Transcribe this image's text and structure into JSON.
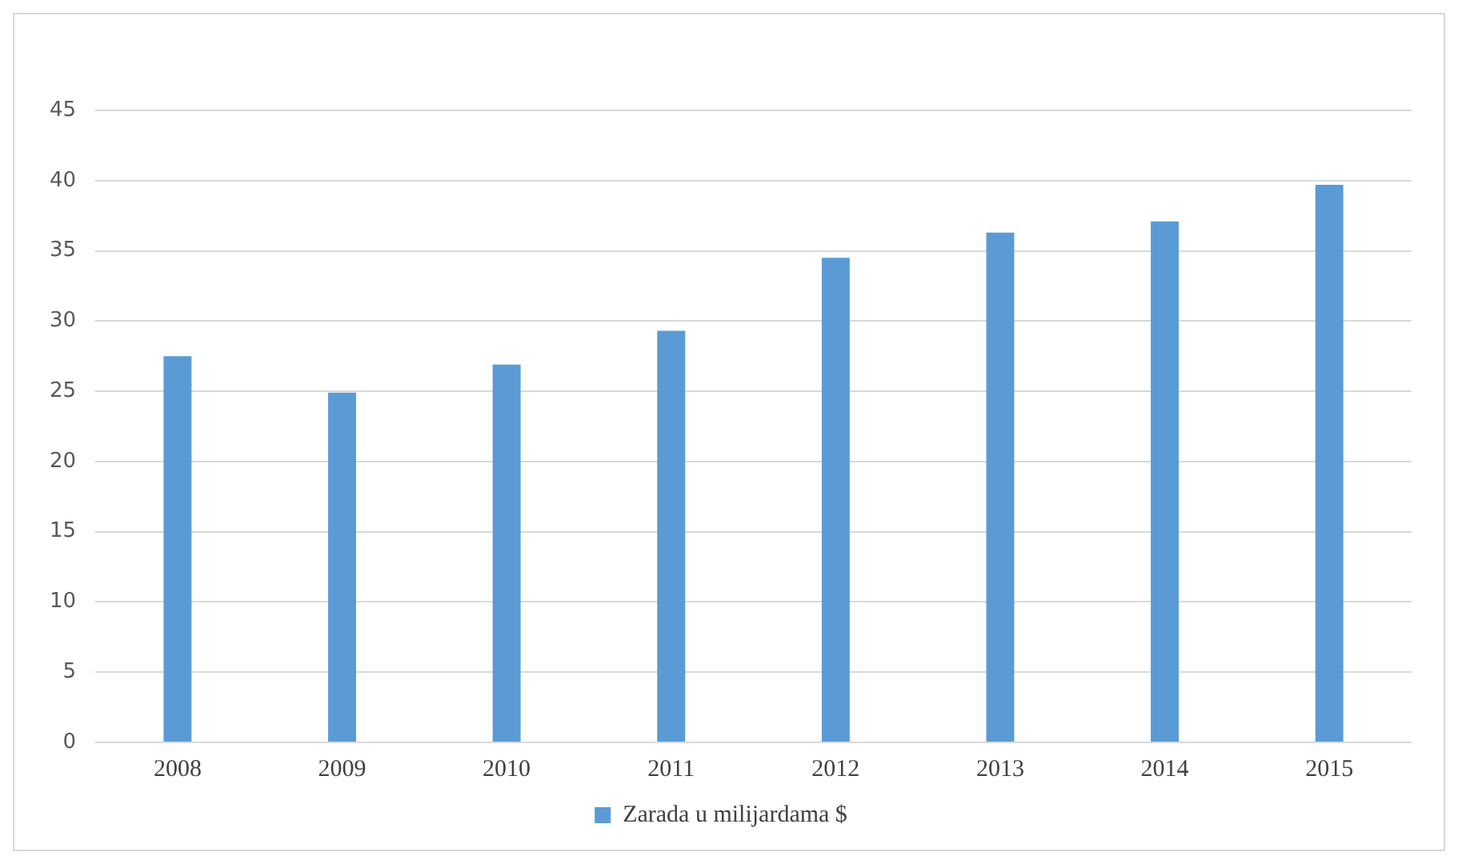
{
  "chart_data": {
    "type": "bar",
    "categories": [
      "2008",
      "2009",
      "2010",
      "2011",
      "2012",
      "2013",
      "2014",
      "2015"
    ],
    "series": [
      {
        "name": "Zarada u milijardama $",
        "color": "#5b9bd5",
        "values": [
          27.5,
          24.9,
          26.9,
          29.3,
          34.5,
          36.3,
          37.1,
          39.7
        ]
      }
    ],
    "ylim": [
      0,
      45
    ],
    "yticks": [
      0,
      5,
      10,
      15,
      20,
      25,
      30,
      35,
      40,
      45
    ],
    "grid": "y",
    "legend": "bottom"
  }
}
